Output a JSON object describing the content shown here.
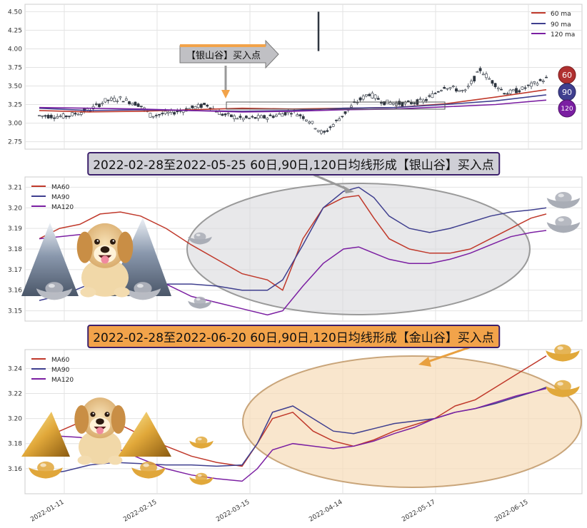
{
  "banners": {
    "silver": "2022-02-28至2022-05-25 60日,90日,120日均线形成【银山谷】买入点",
    "gold": "2022-02-28至2022-06-20 60日,90日,120日均线形成【金山谷】买入点"
  },
  "colors": {
    "ma60": "#c0392b",
    "ma90": "#3f3f8f",
    "ma120": "#7b1fa2",
    "up": "#ffffff",
    "down": "#2f3640"
  },
  "chart_data": [
    {
      "type": "candlestick",
      "ylim": [
        2.65,
        4.6
      ],
      "y_ticks": [
        "2.75",
        "3.00",
        "3.25",
        "3.50",
        "3.75",
        "4.00",
        "4.25",
        "4.50"
      ],
      "annotation": "【银山谷】买入点",
      "legend": [
        "60 ma",
        "90 ma",
        "120 ma"
      ],
      "legend_position": "top-right",
      "ma_badges": [
        "60",
        "90",
        "120"
      ],
      "ma_series": [
        {
          "name": "60 ma",
          "x": [
            0,
            0.1,
            0.2,
            0.3,
            0.4,
            0.5,
            0.6,
            0.7,
            0.8,
            0.9,
            1.0
          ],
          "values": [
            3.17,
            3.15,
            3.16,
            3.18,
            3.2,
            3.19,
            3.2,
            3.21,
            3.26,
            3.35,
            3.45
          ]
        },
        {
          "name": "90 ma",
          "x": [
            0,
            0.1,
            0.2,
            0.3,
            0.4,
            0.5,
            0.6,
            0.7,
            0.8,
            0.9,
            1.0
          ],
          "values": [
            3.2,
            3.17,
            3.18,
            3.17,
            3.16,
            3.17,
            3.2,
            3.21,
            3.25,
            3.3,
            3.38
          ]
        },
        {
          "name": "120 ma",
          "x": [
            0,
            0.1,
            0.2,
            0.3,
            0.4,
            0.5,
            0.6,
            0.7,
            0.8,
            0.9,
            1.0
          ],
          "values": [
            3.21,
            3.2,
            3.19,
            3.17,
            3.15,
            3.16,
            3.18,
            3.19,
            3.22,
            3.25,
            3.31
          ]
        }
      ],
      "close_path": [
        [
          0.0,
          3.1
        ],
        [
          0.05,
          3.09
        ],
        [
          0.1,
          3.18
        ],
        [
          0.13,
          3.3
        ],
        [
          0.16,
          3.33
        ],
        [
          0.2,
          3.24
        ],
        [
          0.22,
          3.1
        ],
        [
          0.26,
          3.14
        ],
        [
          0.3,
          3.2
        ],
        [
          0.33,
          3.25
        ],
        [
          0.36,
          3.12
        ],
        [
          0.4,
          3.06
        ],
        [
          0.45,
          3.08
        ],
        [
          0.5,
          3.16
        ],
        [
          0.53,
          3.05
        ],
        [
          0.56,
          2.85
        ],
        [
          0.59,
          3.05
        ],
        [
          0.62,
          3.25
        ],
        [
          0.65,
          3.4
        ],
        [
          0.68,
          3.28
        ],
        [
          0.72,
          3.26
        ],
        [
          0.76,
          3.3
        ],
        [
          0.8,
          3.5
        ],
        [
          0.84,
          3.42
        ],
        [
          0.87,
          3.72
        ],
        [
          0.89,
          3.58
        ],
        [
          0.92,
          3.4
        ],
        [
          0.95,
          3.45
        ],
        [
          1.0,
          3.6
        ]
      ]
    },
    {
      "type": "line",
      "ylim": [
        3.145,
        3.215
      ],
      "y_ticks": [
        "3.15",
        "3.16",
        "3.17",
        "3.18",
        "3.19",
        "3.20",
        "3.21"
      ],
      "legend": [
        "MA60",
        "MA90",
        "MA120"
      ],
      "legend_position": "top-left",
      "series": [
        {
          "name": "MA60",
          "x": [
            0,
            0.04,
            0.08,
            0.12,
            0.16,
            0.2,
            0.25,
            0.3,
            0.35,
            0.4,
            0.45,
            0.48,
            0.52,
            0.56,
            0.6,
            0.63,
            0.66,
            0.69,
            0.73,
            0.77,
            0.81,
            0.85,
            0.89,
            0.93,
            0.97,
            1.0
          ],
          "values": [
            3.185,
            3.19,
            3.192,
            3.197,
            3.198,
            3.196,
            3.19,
            3.182,
            3.175,
            3.168,
            3.165,
            3.16,
            3.185,
            3.2,
            3.205,
            3.206,
            3.195,
            3.185,
            3.18,
            3.178,
            3.178,
            3.18,
            3.185,
            3.19,
            3.195,
            3.197
          ]
        },
        {
          "name": "MA90",
          "x": [
            0,
            0.05,
            0.1,
            0.15,
            0.2,
            0.25,
            0.3,
            0.35,
            0.4,
            0.45,
            0.48,
            0.52,
            0.56,
            0.6,
            0.63,
            0.66,
            0.69,
            0.73,
            0.77,
            0.81,
            0.85,
            0.89,
            0.93,
            0.97,
            1.0
          ],
          "values": [
            3.155,
            3.158,
            3.163,
            3.165,
            3.164,
            3.163,
            3.163,
            3.162,
            3.16,
            3.16,
            3.165,
            3.182,
            3.2,
            3.208,
            3.21,
            3.205,
            3.196,
            3.19,
            3.188,
            3.19,
            3.193,
            3.196,
            3.198,
            3.199,
            3.2
          ]
        },
        {
          "name": "MA120",
          "x": [
            0,
            0.04,
            0.08,
            0.12,
            0.16,
            0.2,
            0.25,
            0.3,
            0.35,
            0.4,
            0.45,
            0.48,
            0.52,
            0.56,
            0.6,
            0.63,
            0.66,
            0.69,
            0.73,
            0.77,
            0.81,
            0.85,
            0.89,
            0.93,
            0.97,
            1.0
          ],
          "values": [
            3.185,
            3.186,
            3.187,
            3.185,
            3.18,
            3.172,
            3.163,
            3.157,
            3.154,
            3.151,
            3.148,
            3.15,
            3.162,
            3.173,
            3.18,
            3.181,
            3.178,
            3.175,
            3.173,
            3.173,
            3.175,
            3.178,
            3.182,
            3.186,
            3.188,
            3.189
          ]
        }
      ]
    },
    {
      "type": "line",
      "ylim": [
        3.14,
        3.255
      ],
      "y_ticks": [
        "3.16",
        "3.18",
        "3.20",
        "3.22",
        "3.24"
      ],
      "x_ticks": [
        "2022-01-11",
        "2022-02-15",
        "2022-03-15",
        "2022-04-14",
        "2022-05-17",
        "2022-06-15"
      ],
      "legend": [
        "MA60",
        "MA90",
        "MA120"
      ],
      "legend_position": "top-left",
      "series": [
        {
          "name": "MA60",
          "x": [
            0,
            0.04,
            0.08,
            0.12,
            0.16,
            0.2,
            0.25,
            0.3,
            0.35,
            0.4,
            0.43,
            0.46,
            0.5,
            0.54,
            0.58,
            0.62,
            0.66,
            0.7,
            0.74,
            0.78,
            0.82,
            0.86,
            0.9,
            0.94,
            0.98,
            1.0
          ],
          "values": [
            3.175,
            3.19,
            3.197,
            3.199,
            3.195,
            3.187,
            3.178,
            3.17,
            3.165,
            3.162,
            3.18,
            3.2,
            3.205,
            3.19,
            3.182,
            3.178,
            3.183,
            3.19,
            3.195,
            3.2,
            3.21,
            3.215,
            3.225,
            3.235,
            3.245,
            3.25
          ]
        },
        {
          "name": "MA90",
          "x": [
            0,
            0.05,
            0.1,
            0.15,
            0.2,
            0.25,
            0.3,
            0.35,
            0.4,
            0.43,
            0.46,
            0.5,
            0.54,
            0.58,
            0.62,
            0.66,
            0.7,
            0.74,
            0.78,
            0.82,
            0.86,
            0.9,
            0.94,
            0.98,
            1.0
          ],
          "values": [
            3.155,
            3.158,
            3.163,
            3.165,
            3.164,
            3.163,
            3.163,
            3.162,
            3.163,
            3.18,
            3.205,
            3.21,
            3.2,
            3.19,
            3.188,
            3.192,
            3.196,
            3.198,
            3.2,
            3.205,
            3.208,
            3.212,
            3.217,
            3.222,
            3.225
          ]
        },
        {
          "name": "MA120",
          "x": [
            0,
            0.04,
            0.08,
            0.12,
            0.16,
            0.2,
            0.25,
            0.3,
            0.35,
            0.4,
            0.43,
            0.46,
            0.5,
            0.54,
            0.58,
            0.62,
            0.66,
            0.7,
            0.74,
            0.78,
            0.82,
            0.86,
            0.9,
            0.94,
            0.98,
            1.0
          ],
          "values": [
            3.185,
            3.186,
            3.185,
            3.182,
            3.175,
            3.168,
            3.16,
            3.155,
            3.152,
            3.15,
            3.16,
            3.175,
            3.18,
            3.178,
            3.176,
            3.178,
            3.182,
            3.188,
            3.193,
            3.2,
            3.205,
            3.208,
            3.213,
            3.218,
            3.222,
            3.224
          ]
        }
      ]
    }
  ]
}
